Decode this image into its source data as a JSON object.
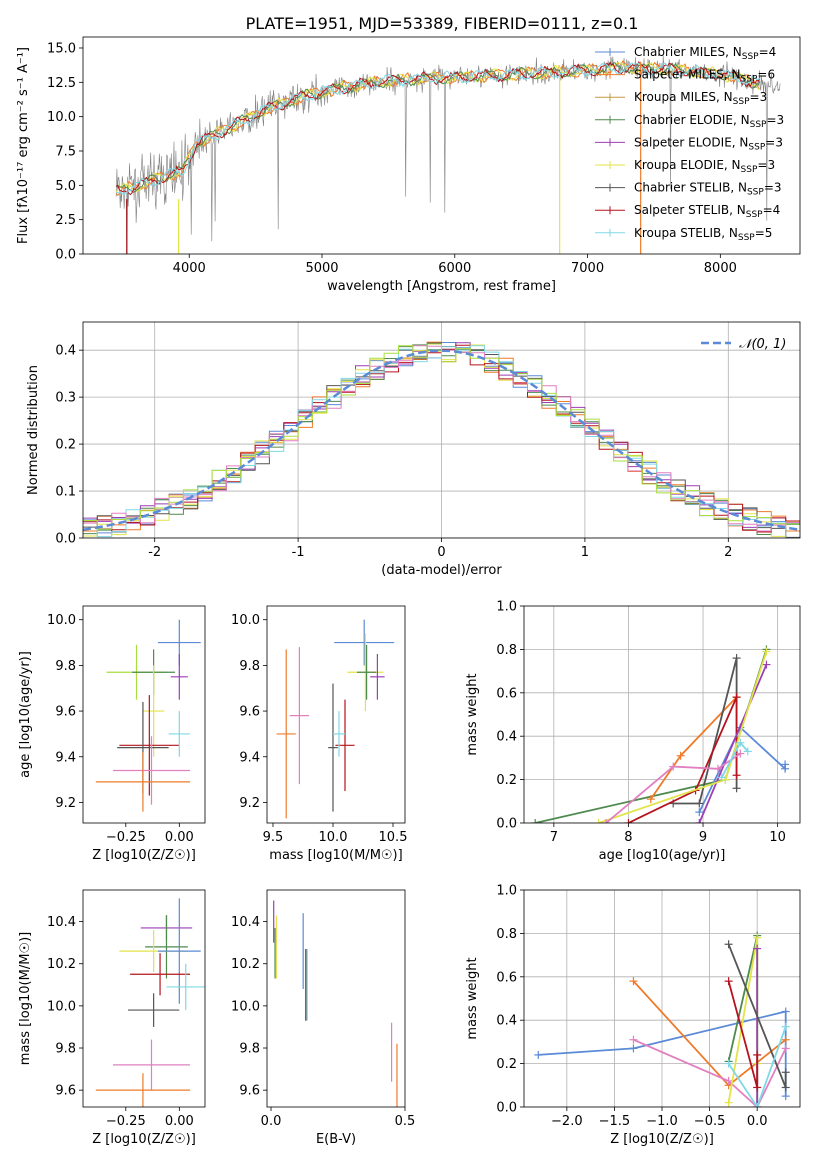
{
  "figure_title": "PLATE=1951, MJD=53389, FIBERID=0111, z=0.1",
  "colors": {
    "Chabrier MILES": "#5b8ad6",
    "Salpeter MILES": "#ef7b2a",
    "Kroupa MILES": "#c49a43",
    "Chabrier ELODIE": "#4f8a4f",
    "Salpeter ELODIE": "#9b3fb5",
    "Kroupa ELODIE": "#e3e34a",
    "Chabrier STELIB": "#555555",
    "Salpeter STELIB": "#b5141e",
    "Kroupa STELIB": "#80d8e6",
    "data": "#7f7f7f",
    "pink": "#e27fc0",
    "lime": "#aade3c",
    "gaussian": "#5b8ad6"
  },
  "chart_data": [
    {
      "id": "spectrum",
      "type": "line",
      "title": "PLATE=1951, MJD=53389, FIBERID=0111, z=0.1",
      "xlabel": "wavelength [Angstrom, rest frame]",
      "ylabel": "Flux [fλ10⁻¹⁷ erg cm⁻² s⁻¹ A⁻¹]",
      "xlim": [
        3200,
        8600
      ],
      "ylim": [
        0,
        15.8
      ],
      "xticks": [
        4000,
        5000,
        6000,
        7000,
        8000
      ],
      "yticks": [
        0.0,
        2.5,
        5.0,
        7.5,
        10.0,
        12.5,
        15.0
      ],
      "continuum_x": [
        3450,
        3600,
        3800,
        3950,
        4050,
        4300,
        4600,
        4900,
        5200,
        5500,
        5800,
        6100,
        6500,
        6900,
        7300,
        7700,
        8000,
        8400
      ],
      "continuum_y": [
        4.6,
        4.9,
        5.6,
        6.0,
        8.0,
        9.2,
        10.6,
        11.6,
        12.2,
        12.6,
        12.8,
        12.9,
        13.1,
        13.3,
        13.6,
        13.4,
        13.1,
        12.2
      ],
      "legend": [
        {
          "label": "Chabrier MILES, N",
          "sub": "SSP",
          "tail": "=4"
        },
        {
          "label": "Salpeter MILES, N",
          "sub": "SSP",
          "tail": "=6"
        },
        {
          "label": "Kroupa MILES, N",
          "sub": "SSP",
          "tail": "=3"
        },
        {
          "label": "Chabrier ELODIE, N",
          "sub": "SSP",
          "tail": "=3"
        },
        {
          "label": "Salpeter ELODIE, N",
          "sub": "SSP",
          "tail": "=3"
        },
        {
          "label": "Kroupa ELODIE, N",
          "sub": "SSP",
          "tail": "=3"
        },
        {
          "label": "Chabrier STELIB, N",
          "sub": "SSP",
          "tail": "=3"
        },
        {
          "label": "Salpeter STELIB, N",
          "sub": "SSP",
          "tail": "=4"
        },
        {
          "label": "Kroupa STELIB, N",
          "sub": "SSP",
          "tail": "=5"
        }
      ]
    },
    {
      "id": "residuals",
      "type": "line",
      "xlabel": "(data-model)/error",
      "ylabel": "Normed distribution",
      "xlim": [
        -2.5,
        2.5
      ],
      "ylim": [
        0,
        0.46
      ],
      "xticks": [
        -2,
        -1,
        0,
        1,
        2
      ],
      "yticks": [
        0.0,
        0.1,
        0.2,
        0.3,
        0.4
      ],
      "grid": true,
      "legend_label": "𝒩(0, 1)",
      "bin_width": 0.1
    },
    {
      "id": "age-vs-Z",
      "type": "scatter",
      "xlabel": "Z [log10(Z/Z☉)]",
      "ylabel": "age  [log10(age/yr)]",
      "xlim": [
        -0.45,
        0.12
      ],
      "ylim": [
        9.11,
        10.06
      ],
      "xticks": [
        -0.25,
        0.0
      ],
      "xtick_labels": [
        "−0.25",
        "0.00"
      ],
      "yticks": [
        9.2,
        9.4,
        9.6,
        9.8,
        10.0
      ],
      "points": [
        {
          "x": 0.0,
          "y": 9.9,
          "xerr": 0.1,
          "yerr": 0.1,
          "c": "Chabrier MILES"
        },
        {
          "x": -0.2,
          "y": 9.77,
          "xerr": 0.14,
          "yerr": 0.12,
          "c": "lime"
        },
        {
          "x": -0.12,
          "y": 9.77,
          "xerr": 0.1,
          "yerr": 0.1,
          "c": "Chabrier ELODIE"
        },
        {
          "x": 0.0,
          "y": 9.75,
          "xerr": 0.04,
          "yerr": 0.1,
          "c": "Salpeter ELODIE"
        },
        {
          "x": -0.12,
          "y": 9.6,
          "xerr": 0.05,
          "yerr": 0.2,
          "c": "Kroupa ELODIE"
        },
        {
          "x": -0.14,
          "y": 9.45,
          "xerr": 0.14,
          "yerr": 0.22,
          "c": "Salpeter STELIB"
        },
        {
          "x": -0.17,
          "y": 9.44,
          "xerr": 0.12,
          "yerr": 0.2,
          "c": "Chabrier STELIB"
        },
        {
          "x": 0.0,
          "y": 9.5,
          "xerr": 0.05,
          "yerr": 0.1,
          "c": "Kroupa STELIB"
        },
        {
          "x": -0.13,
          "y": 9.34,
          "xerr": 0.18,
          "yerr": 0.15,
          "c": "pink"
        },
        {
          "x": -0.17,
          "y": 9.29,
          "xerr": 0.22,
          "yerr": 0.13,
          "c": "Salpeter MILES"
        }
      ]
    },
    {
      "id": "age-vs-mass",
      "type": "scatter",
      "xlabel": "mass [log10(M/M☉)]",
      "xlim": [
        9.45,
        10.6
      ],
      "ylim": [
        9.11,
        10.06
      ],
      "xticks": [
        9.5,
        10.0,
        10.5
      ],
      "xtick_labels": [
        "9.5",
        "10.0",
        "10.5"
      ],
      "yticks": [
        9.2,
        9.4,
        9.6,
        9.8,
        10.0
      ],
      "points": [
        {
          "x": 10.26,
          "y": 9.9,
          "xerr": 0.25,
          "yerr": 0.1,
          "c": "Chabrier MILES"
        },
        {
          "x": 10.27,
          "y": 9.77,
          "xerr": 0.15,
          "yerr": 0.17,
          "c": "Kroupa ELODIE"
        },
        {
          "x": 10.37,
          "y": 9.75,
          "xerr": 0.06,
          "yerr": 0.1,
          "c": "Salpeter ELODIE"
        },
        {
          "x": 10.28,
          "y": 9.77,
          "xerr": 0.08,
          "yerr": 0.12,
          "c": "Chabrier ELODIE"
        },
        {
          "x": 10.1,
          "y": 9.45,
          "xerr": 0.08,
          "yerr": 0.2,
          "c": "Salpeter STELIB"
        },
        {
          "x": 10.0,
          "y": 9.44,
          "xerr": 0.04,
          "yerr": 0.28,
          "c": "Chabrier STELIB"
        },
        {
          "x": 10.05,
          "y": 9.5,
          "xerr": 0.05,
          "yerr": 0.1,
          "c": "Kroupa STELIB"
        },
        {
          "x": 9.72,
          "y": 9.58,
          "xerr": 0.08,
          "yerr": 0.3,
          "c": "pink"
        },
        {
          "x": 9.61,
          "y": 9.5,
          "xerr": 0.08,
          "yerr": 0.37,
          "c": "Salpeter MILES"
        }
      ]
    },
    {
      "id": "mass-weight-vs-age",
      "type": "line",
      "xlabel": "age  [log10(age/yr)]",
      "ylabel": "mass weight",
      "xlim": [
        6.6,
        10.3
      ],
      "ylim": [
        0,
        1.0
      ],
      "xticks": [
        7,
        8,
        9,
        10
      ],
      "yticks": [
        0.0,
        0.2,
        0.4,
        0.6,
        0.8,
        1.0
      ],
      "grid": true,
      "series": [
        {
          "c": "Chabrier ELODIE",
          "x": [
            6.75,
            9.3,
            9.85
          ],
          "y": [
            0.0,
            0.2,
            0.8
          ]
        },
        {
          "c": "Chabrier MILES",
          "x": [
            8.95,
            9.5,
            10.1,
            10.1
          ],
          "y": [
            0.05,
            0.44,
            0.25,
            0.27
          ]
        },
        {
          "c": "Salpeter MILES",
          "x": [
            8.3,
            8.7,
            9.45
          ],
          "y": [
            0.11,
            0.31,
            0.58
          ]
        },
        {
          "c": "Chabrier STELIB",
          "x": [
            8.6,
            8.95,
            9.45,
            9.45
          ],
          "y": [
            0.09,
            0.09,
            0.76,
            0.16
          ]
        },
        {
          "c": "Salpeter STELIB",
          "x": [
            8.0,
            8.9,
            9.45,
            9.45
          ],
          "y": [
            0.0,
            0.15,
            0.58,
            0.22
          ]
        },
        {
          "c": "Salpeter ELODIE",
          "x": [
            8.95,
            9.85
          ],
          "y": [
            0.0,
            0.73
          ]
        },
        {
          "c": "Kroupa ELODIE",
          "x": [
            7.6,
            9.3,
            9.85
          ],
          "y": [
            0.0,
            0.2,
            0.79
          ]
        },
        {
          "c": "pink",
          "x": [
            7.7,
            8.6,
            9.2,
            9.5
          ],
          "y": [
            0.0,
            0.26,
            0.25,
            0.32
          ]
        },
        {
          "c": "Kroupa STELIB",
          "x": [
            9.25,
            9.5,
            9.6
          ],
          "y": [
            0.21,
            0.37,
            0.33
          ]
        }
      ]
    },
    {
      "id": "mass-vs-Z",
      "type": "scatter",
      "xlabel": "Z [log10(Z/Z☉)]",
      "ylabel": "mass [log10(M/M☉)]",
      "xlim": [
        -0.45,
        0.12
      ],
      "ylim": [
        9.52,
        10.55
      ],
      "xticks": [
        -0.25,
        0.0
      ],
      "xtick_labels": [
        "−0.25",
        "0.00"
      ],
      "yticks": [
        9.6,
        9.8,
        10.0,
        10.2,
        10.4
      ],
      "points": [
        {
          "x": -0.06,
          "y": 10.37,
          "xerr": 0.12,
          "yerr": 0.06,
          "c": "Salpeter ELODIE"
        },
        {
          "x": -0.06,
          "y": 10.28,
          "xerr": 0.1,
          "yerr": 0.15,
          "c": "Chabrier ELODIE"
        },
        {
          "x": -0.12,
          "y": 10.26,
          "xerr": 0.16,
          "yerr": 0.1,
          "c": "Kroupa ELODIE"
        },
        {
          "x": 0.0,
          "y": 10.26,
          "xerr": 0.1,
          "yerr": 0.25,
          "c": "Chabrier MILES"
        },
        {
          "x": -0.09,
          "y": 10.15,
          "xerr": 0.14,
          "yerr": 0.1,
          "c": "Salpeter STELIB"
        },
        {
          "x": 0.03,
          "y": 10.09,
          "xerr": 0.09,
          "yerr": 0.11,
          "c": "Kroupa STELIB"
        },
        {
          "x": -0.12,
          "y": 9.98,
          "xerr": 0.12,
          "yerr": 0.08,
          "c": "Chabrier STELIB"
        },
        {
          "x": -0.13,
          "y": 9.72,
          "xerr": 0.18,
          "yerr": 0.12,
          "c": "pink"
        },
        {
          "x": -0.17,
          "y": 9.6,
          "xerr": 0.22,
          "yerr": 0.08,
          "c": "Salpeter MILES"
        }
      ]
    },
    {
      "id": "mass-vs-EBV",
      "type": "scatter",
      "xlabel": "E(B-V)",
      "xlim": [
        -0.015,
        0.5
      ],
      "ylim": [
        9.52,
        10.55
      ],
      "xticks": [
        0.0,
        0.5
      ],
      "xtick_labels": [
        "0.0",
        "0.5"
      ],
      "yticks": [
        9.6,
        9.8,
        10.0,
        10.2,
        10.4
      ],
      "points": [
        {
          "x": 0.01,
          "y": 10.4,
          "yerr": 0.1,
          "c": "Salpeter ELODIE"
        },
        {
          "x": 0.02,
          "y": 10.28,
          "yerr": 0.15,
          "c": "Kroupa ELODIE"
        },
        {
          "x": 0.015,
          "y": 10.25,
          "yerr": 0.12,
          "c": "Chabrier ELODIE"
        },
        {
          "x": 0.12,
          "y": 10.26,
          "yerr": 0.18,
          "c": "Chabrier MILES"
        },
        {
          "x": 0.13,
          "y": 10.1,
          "yerr": 0.17,
          "c": "Salpeter STELIB"
        },
        {
          "x": 0.13,
          "y": 10.1,
          "yerr": 0.17,
          "c": "Chabrier STELIB"
        },
        {
          "x": 0.135,
          "y": 10.1,
          "yerr": 0.17,
          "c": "Kroupa STELIB"
        },
        {
          "x": 0.45,
          "y": 9.78,
          "yerr": 0.14,
          "c": "pink"
        },
        {
          "x": 0.47,
          "y": 9.67,
          "yerr": 0.15,
          "c": "Salpeter MILES"
        }
      ]
    },
    {
      "id": "mass-weight-vs-Z",
      "type": "line",
      "xlabel": "Z [log10(Z/Z☉)]",
      "ylabel": "mass weight",
      "xlim": [
        -2.45,
        0.45
      ],
      "ylim": [
        0,
        1.0
      ],
      "xticks": [
        -2.0,
        -1.5,
        -1.0,
        -0.5,
        0.0
      ],
      "xtick_labels": [
        "−2.0",
        "−1.5",
        "−1.0",
        "−0.5",
        "0.0"
      ],
      "yticks": [
        0.0,
        0.2,
        0.4,
        0.6,
        0.8,
        1.0
      ],
      "grid": true,
      "series": [
        {
          "c": "Chabrier MILES",
          "x": [
            -2.3,
            -1.3,
            0.3,
            0.3
          ],
          "y": [
            0.24,
            0.27,
            0.44,
            0.05
          ]
        },
        {
          "c": "Salpeter MILES",
          "x": [
            -1.3,
            -0.3,
            0.3
          ],
          "y": [
            0.58,
            0.1,
            0.31
          ]
        },
        {
          "c": "pink",
          "x": [
            -1.3,
            -0.3,
            0.0,
            0.3
          ],
          "y": [
            0.31,
            0.12,
            0.0,
            0.27
          ]
        },
        {
          "c": "Chabrier ELODIE",
          "x": [
            -0.3,
            0.0,
            0.0
          ],
          "y": [
            0.21,
            0.79,
            0.0
          ]
        },
        {
          "c": "Kroupa ELODIE",
          "x": [
            -0.3,
            0.0,
            0.0
          ],
          "y": [
            0.02,
            0.78,
            0.2
          ]
        },
        {
          "c": "Salpeter ELODIE",
          "x": [
            0.0,
            0.0
          ],
          "y": [
            0.73,
            0.0
          ]
        },
        {
          "c": "Chabrier STELIB",
          "x": [
            -0.3,
            0.3,
            0.3
          ],
          "y": [
            0.75,
            0.09,
            0.16
          ]
        },
        {
          "c": "Salpeter STELIB",
          "x": [
            -0.3,
            0.0,
            0.0
          ],
          "y": [
            0.58,
            0.09,
            0.24
          ]
        },
        {
          "c": "Kroupa STELIB",
          "x": [
            -0.3,
            0.0,
            0.3
          ],
          "y": [
            0.2,
            0.0,
            0.37
          ]
        }
      ]
    }
  ]
}
